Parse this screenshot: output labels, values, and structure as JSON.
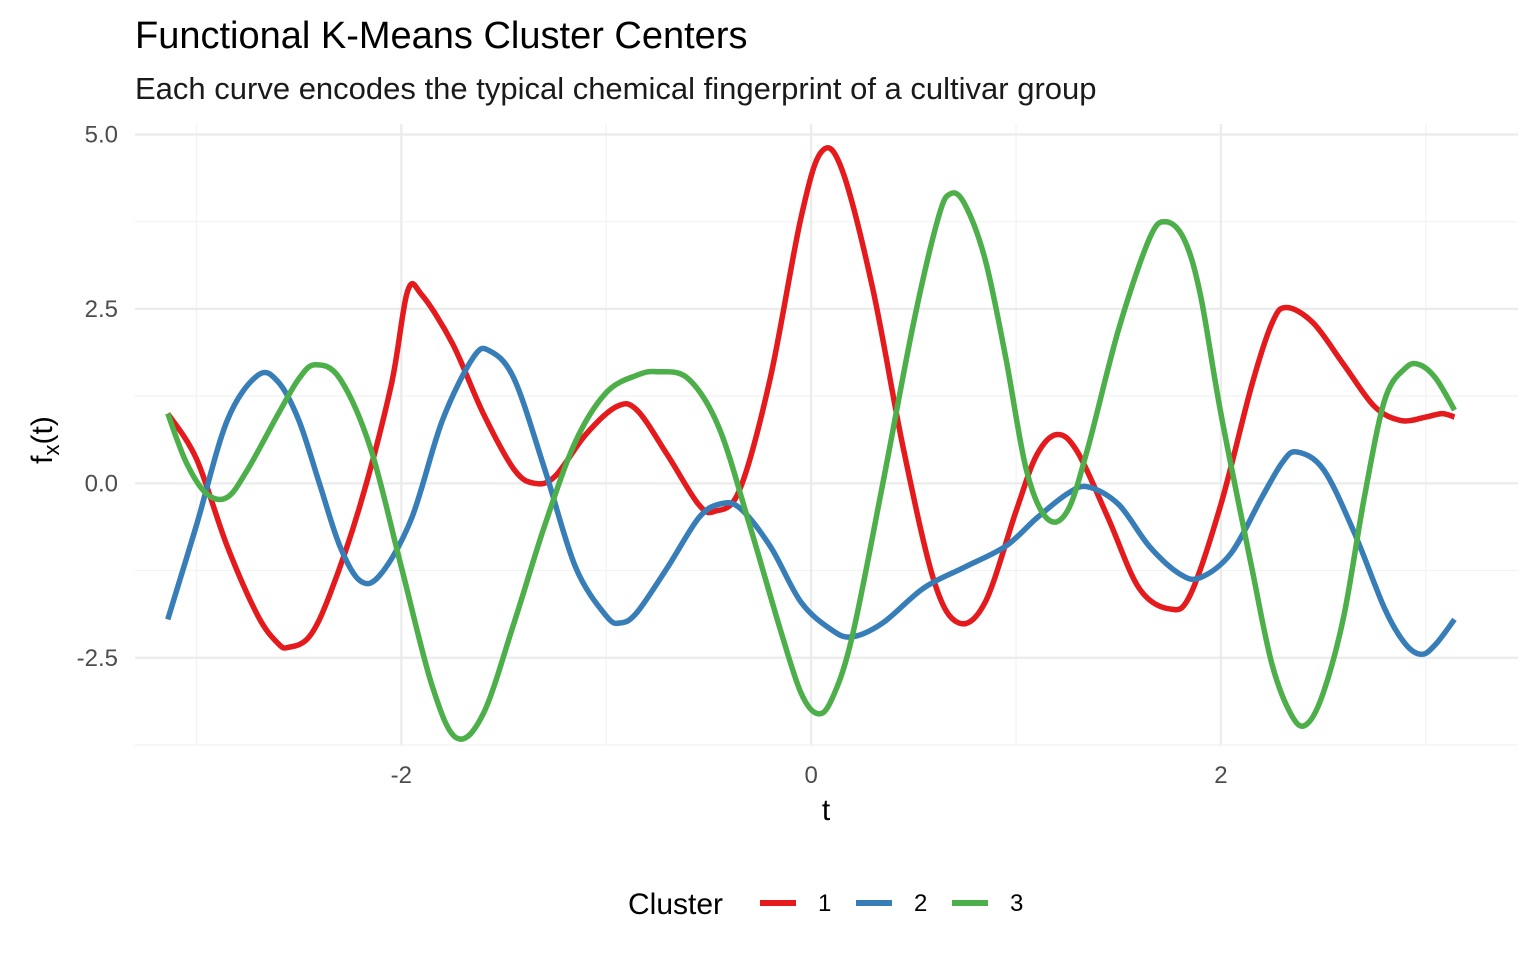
{
  "chart_data": {
    "type": "line",
    "title": "Functional K-Means Cluster Centers",
    "subtitle": "Each curve encodes the typical chemical fingerprint of a cultivar group",
    "xlabel": "t",
    "ylabel_main": "f",
    "ylabel_sub": "x",
    "ylabel_tail": "(t)",
    "xlim": [
      -3.3,
      3.45
    ],
    "ylim": [
      -3.75,
      5.15
    ],
    "x_ticks": [
      -2,
      0,
      2
    ],
    "x_tick_labels": [
      "-2",
      "0",
      "2"
    ],
    "x_minor": [
      -3,
      -1,
      1,
      3
    ],
    "y_ticks": [
      -2.5,
      0.0,
      2.5,
      5.0
    ],
    "y_tick_labels": [
      "-2.5",
      "0.0",
      "2.5",
      "5.0"
    ],
    "y_minor": [
      -3.75,
      -1.25,
      1.25,
      3.75
    ],
    "grid": true,
    "legend": {
      "title": "Cluster",
      "position": "bottom"
    },
    "series": [
      {
        "name": "1",
        "color": "#E41A1C",
        "points": [
          [
            -3.14,
            1.0
          ],
          [
            -3.0,
            0.35
          ],
          [
            -2.85,
            -0.9
          ],
          [
            -2.7,
            -1.9
          ],
          [
            -2.6,
            -2.3
          ],
          [
            -2.55,
            -2.35
          ],
          [
            -2.45,
            -2.2
          ],
          [
            -2.35,
            -1.6
          ],
          [
            -2.2,
            -0.3
          ],
          [
            -2.05,
            1.4
          ],
          [
            -1.97,
            2.75
          ],
          [
            -1.9,
            2.7
          ],
          [
            -1.75,
            2.0
          ],
          [
            -1.6,
            1.0
          ],
          [
            -1.45,
            0.2
          ],
          [
            -1.35,
            0.0
          ],
          [
            -1.25,
            0.1
          ],
          [
            -1.1,
            0.7
          ],
          [
            -0.95,
            1.1
          ],
          [
            -0.85,
            1.05
          ],
          [
            -0.7,
            0.4
          ],
          [
            -0.55,
            -0.3
          ],
          [
            -0.47,
            -0.4
          ],
          [
            -0.35,
            -0.1
          ],
          [
            -0.2,
            1.5
          ],
          [
            -0.05,
            3.8
          ],
          [
            0.05,
            4.75
          ],
          [
            0.15,
            4.5
          ],
          [
            0.3,
            2.8
          ],
          [
            0.45,
            0.5
          ],
          [
            0.6,
            -1.4
          ],
          [
            0.72,
            -2.0
          ],
          [
            0.85,
            -1.7
          ],
          [
            1.0,
            -0.4
          ],
          [
            1.1,
            0.4
          ],
          [
            1.2,
            0.7
          ],
          [
            1.3,
            0.45
          ],
          [
            1.45,
            -0.5
          ],
          [
            1.6,
            -1.5
          ],
          [
            1.75,
            -1.8
          ],
          [
            1.85,
            -1.6
          ],
          [
            2.0,
            -0.3
          ],
          [
            2.15,
            1.4
          ],
          [
            2.25,
            2.3
          ],
          [
            2.32,
            2.52
          ],
          [
            2.45,
            2.3
          ],
          [
            2.6,
            1.7
          ],
          [
            2.75,
            1.1
          ],
          [
            2.88,
            0.9
          ],
          [
            3.0,
            0.95
          ],
          [
            3.08,
            1.0
          ],
          [
            3.14,
            0.95
          ]
        ]
      },
      {
        "name": "2",
        "color": "#377EB8",
        "points": [
          [
            -3.14,
            -1.95
          ],
          [
            -3.0,
            -0.6
          ],
          [
            -2.85,
            0.9
          ],
          [
            -2.7,
            1.55
          ],
          [
            -2.6,
            1.45
          ],
          [
            -2.5,
            0.9
          ],
          [
            -2.4,
            0.0
          ],
          [
            -2.3,
            -0.9
          ],
          [
            -2.2,
            -1.4
          ],
          [
            -2.1,
            -1.3
          ],
          [
            -1.95,
            -0.5
          ],
          [
            -1.8,
            0.9
          ],
          [
            -1.65,
            1.8
          ],
          [
            -1.57,
            1.9
          ],
          [
            -1.45,
            1.5
          ],
          [
            -1.3,
            0.2
          ],
          [
            -1.15,
            -1.2
          ],
          [
            -1.0,
            -1.9
          ],
          [
            -0.93,
            -2.0
          ],
          [
            -0.85,
            -1.85
          ],
          [
            -0.7,
            -1.2
          ],
          [
            -0.55,
            -0.5
          ],
          [
            -0.45,
            -0.3
          ],
          [
            -0.35,
            -0.35
          ],
          [
            -0.2,
            -0.9
          ],
          [
            -0.05,
            -1.7
          ],
          [
            0.1,
            -2.1
          ],
          [
            0.2,
            -2.2
          ],
          [
            0.35,
            -2.0
          ],
          [
            0.55,
            -1.5
          ],
          [
            0.75,
            -1.2
          ],
          [
            0.95,
            -0.9
          ],
          [
            1.1,
            -0.5
          ],
          [
            1.25,
            -0.15
          ],
          [
            1.35,
            -0.05
          ],
          [
            1.5,
            -0.3
          ],
          [
            1.65,
            -0.9
          ],
          [
            1.8,
            -1.3
          ],
          [
            1.9,
            -1.35
          ],
          [
            2.05,
            -1.0
          ],
          [
            2.2,
            -0.2
          ],
          [
            2.3,
            0.3
          ],
          [
            2.37,
            0.45
          ],
          [
            2.5,
            0.2
          ],
          [
            2.65,
            -0.7
          ],
          [
            2.8,
            -1.8
          ],
          [
            2.9,
            -2.3
          ],
          [
            2.98,
            -2.45
          ],
          [
            3.05,
            -2.3
          ],
          [
            3.14,
            -1.95
          ]
        ]
      },
      {
        "name": "3",
        "color": "#4DAF4A",
        "points": [
          [
            -3.14,
            1.0
          ],
          [
            -3.05,
            0.3
          ],
          [
            -2.95,
            -0.15
          ],
          [
            -2.85,
            -0.2
          ],
          [
            -2.75,
            0.2
          ],
          [
            -2.6,
            1.0
          ],
          [
            -2.5,
            1.5
          ],
          [
            -2.42,
            1.7
          ],
          [
            -2.3,
            1.5
          ],
          [
            -2.15,
            0.5
          ],
          [
            -2.0,
            -1.2
          ],
          [
            -1.85,
            -2.9
          ],
          [
            -1.73,
            -3.65
          ],
          [
            -1.6,
            -3.3
          ],
          [
            -1.45,
            -2.0
          ],
          [
            -1.3,
            -0.6
          ],
          [
            -1.15,
            0.6
          ],
          [
            -1.0,
            1.3
          ],
          [
            -0.85,
            1.55
          ],
          [
            -0.75,
            1.6
          ],
          [
            -0.6,
            1.5
          ],
          [
            -0.45,
            0.8
          ],
          [
            -0.3,
            -0.6
          ],
          [
            -0.15,
            -2.1
          ],
          [
            -0.05,
            -3.0
          ],
          [
            0.03,
            -3.3
          ],
          [
            0.1,
            -3.1
          ],
          [
            0.2,
            -2.2
          ],
          [
            0.35,
            0.0
          ],
          [
            0.5,
            2.3
          ],
          [
            0.62,
            3.8
          ],
          [
            0.68,
            4.15
          ],
          [
            0.75,
            4.0
          ],
          [
            0.85,
            3.2
          ],
          [
            0.95,
            1.8
          ],
          [
            1.05,
            0.2
          ],
          [
            1.15,
            -0.5
          ],
          [
            1.25,
            -0.4
          ],
          [
            1.35,
            0.5
          ],
          [
            1.5,
            2.2
          ],
          [
            1.65,
            3.5
          ],
          [
            1.73,
            3.75
          ],
          [
            1.82,
            3.5
          ],
          [
            1.9,
            2.7
          ],
          [
            2.0,
            1.0
          ],
          [
            2.15,
            -1.2
          ],
          [
            2.25,
            -2.6
          ],
          [
            2.35,
            -3.35
          ],
          [
            2.42,
            -3.45
          ],
          [
            2.5,
            -3.0
          ],
          [
            2.6,
            -1.9
          ],
          [
            2.7,
            -0.2
          ],
          [
            2.8,
            1.2
          ],
          [
            2.9,
            1.65
          ],
          [
            2.97,
            1.7
          ],
          [
            3.05,
            1.5
          ],
          [
            3.14,
            1.05
          ]
        ]
      }
    ]
  }
}
